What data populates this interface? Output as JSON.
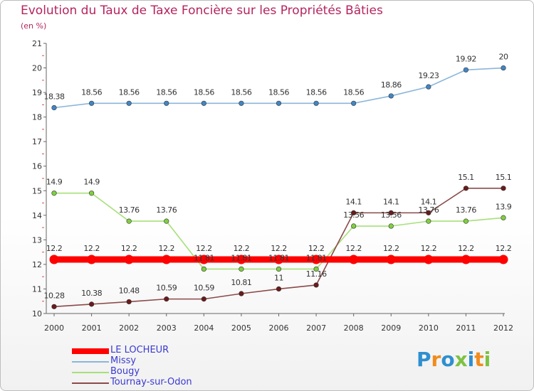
{
  "title": "Evolution du Taux de Taxe Foncière sur les Propriétés Bâties",
  "subtitle": "(en %)",
  "logo": {
    "letters": [
      "P",
      "r",
      "o",
      "x",
      "i",
      "t",
      "i"
    ],
    "colors": [
      "#2f8fd0",
      "#f08c1e",
      "#2f8fd0",
      "#7dc242",
      "#2f8fd0",
      "#f08c1e",
      "#7dc242"
    ]
  },
  "chart_data": {
    "type": "line",
    "title": "Evolution du Taux de Taxe Foncière sur les Propriétés Bâties",
    "ylabel": "(en %)",
    "xlabel": "",
    "ylim": [
      10,
      21
    ],
    "yticks": [
      "10",
      "11",
      "12",
      "13",
      "14",
      "15",
      "16",
      "17",
      "18",
      "19",
      "20",
      "21"
    ],
    "categories": [
      "2000",
      "2001",
      "2002",
      "2003",
      "2004",
      "2005",
      "2006",
      "2007",
      "2008",
      "2009",
      "2010",
      "2011",
      "2012"
    ],
    "grid": false,
    "legend_position": "bottom-left",
    "series": [
      {
        "name": "LE LOCHEUR",
        "color": "#ff0000",
        "marker": "#ff0000",
        "thick": true,
        "values": [
          12.2,
          12.2,
          12.2,
          12.2,
          12.2,
          12.2,
          12.2,
          12.2,
          12.2,
          12.2,
          12.2,
          12.2,
          12.2
        ],
        "labels": [
          "12.2",
          "12.2",
          "12.2",
          "12.2",
          "12.2",
          "12.2",
          "12.2",
          "12.2",
          "12.2",
          "12.2",
          "12.2",
          "12.2",
          "12.2"
        ]
      },
      {
        "name": "Missy",
        "color": "#8ab6d9",
        "marker": "#3f86c5",
        "thick": false,
        "values": [
          18.38,
          18.56,
          18.56,
          18.56,
          18.56,
          18.56,
          18.56,
          18.56,
          18.56,
          18.86,
          19.23,
          19.92,
          20
        ],
        "labels": [
          "18.38",
          "18.56",
          "18.56",
          "18.56",
          "18.56",
          "18.56",
          "18.56",
          "18.56",
          "18.56",
          "18.86",
          "19.23",
          "19.92",
          "20"
        ]
      },
      {
        "name": "Bougy",
        "color": "#a6e07a",
        "marker": "#7fcf3f",
        "thick": false,
        "values": [
          14.9,
          14.9,
          13.76,
          13.76,
          11.81,
          11.81,
          11.81,
          11.81,
          13.56,
          13.56,
          13.76,
          13.76,
          13.9
        ],
        "labels": [
          "14.9",
          "14.9",
          "13.76",
          "13.76",
          "11.81",
          "11.81",
          "11.81",
          "11.81",
          "13.56",
          "13.56",
          "13.76",
          "13.76",
          "13.9"
        ]
      },
      {
        "name": "Tournay-sur-Odon",
        "color": "#8b4a4a",
        "marker": "#6b1a1a",
        "thick": false,
        "values": [
          10.28,
          10.38,
          10.48,
          10.59,
          10.59,
          10.81,
          11,
          11.16,
          14.1,
          14.1,
          14.1,
          15.1,
          15.1
        ],
        "labels": [
          "10.28",
          "10.38",
          "10.48",
          "10.59",
          "10.59",
          "10.81",
          "11",
          "11.16",
          "14.1",
          "14.1",
          "14.1",
          "15.1",
          "15.1"
        ]
      }
    ]
  }
}
